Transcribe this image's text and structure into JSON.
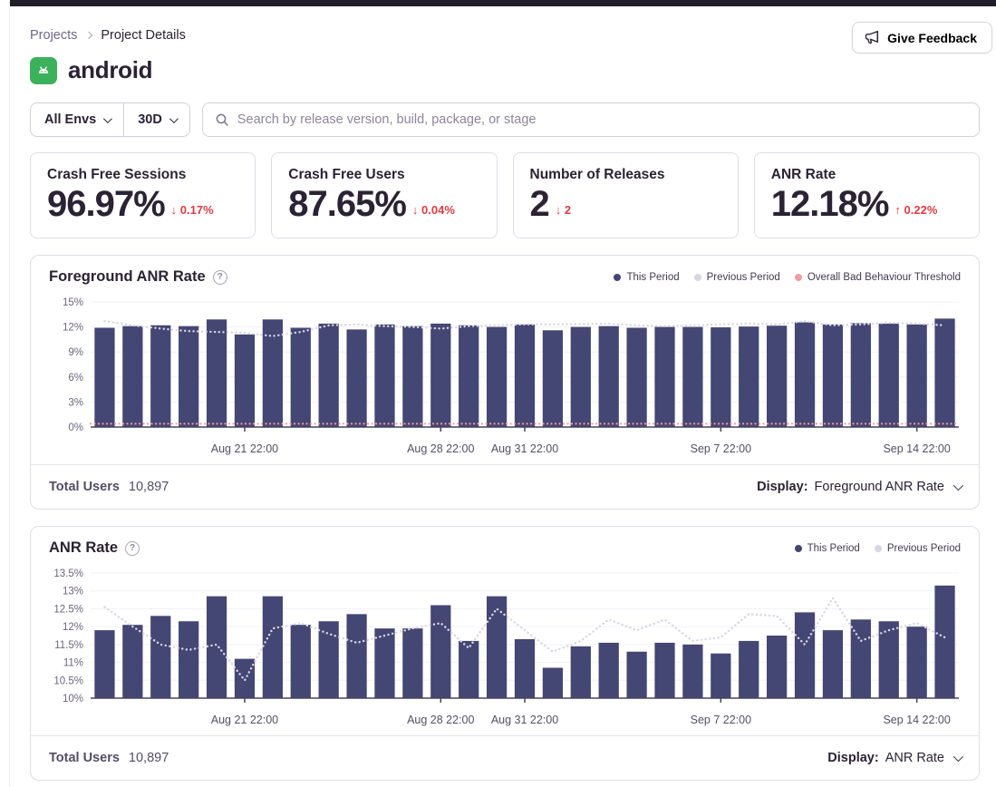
{
  "breadcrumb": {
    "items": [
      {
        "label": "Projects"
      },
      {
        "label": "Project Details"
      }
    ]
  },
  "header": {
    "project_name": "android",
    "give_feedback_label": "Give Feedback"
  },
  "filters": {
    "env_value": "All Envs",
    "period_value": "30D",
    "search_placeholder": "Search by release version, build, package, or stage",
    "search_value": ""
  },
  "stats": [
    {
      "label": "Crash Free Sessions",
      "value": "96.97%",
      "delta": "↓ 0.17%"
    },
    {
      "label": "Crash Free Users",
      "value": "87.65%",
      "delta": "↓ 0.04%"
    },
    {
      "label": "Number of Releases",
      "value": "2",
      "delta": "↓ 2"
    },
    {
      "label": "ANR Rate",
      "value": "12.18%",
      "delta": "↑ 0.22%"
    }
  ],
  "ui": {
    "help_glyph": "?"
  },
  "charts": [
    {
      "title": "Foreground ANR Rate",
      "footer_total_label": "Total Users",
      "footer_total_value": "10,897",
      "footer_display_label": "Display:",
      "footer_display_value": "Foreground ANR Rate"
    },
    {
      "title": "ANR Rate",
      "footer_total_label": "Total Users",
      "footer_total_value": "10,897",
      "footer_display_label": "Display:",
      "footer_display_value": "ANR Rate"
    }
  ],
  "chart_data": [
    {
      "type": "bar",
      "title": "Foreground ANR Rate",
      "xlabel": "",
      "ylabel": "",
      "ylim": [
        0,
        15
      ],
      "yticks": [
        0,
        3,
        6,
        9,
        12,
        15
      ],
      "ytick_labels": [
        "0%",
        "3%",
        "6%",
        "9%",
        "12%",
        "15%"
      ],
      "x_tick_labels": [
        "Aug 21 22:00",
        "Aug 28 22:00",
        "Aug 31 22:00",
        "Sep 7 22:00",
        "Sep 14 22:00"
      ],
      "x_tick_indices": [
        5,
        12,
        15,
        22,
        29
      ],
      "grid": true,
      "legend_position": "top-right",
      "legend": [
        {
          "name": "This Period",
          "color": "#444674"
        },
        {
          "name": "Previous Period",
          "color": "#d9d5e3"
        },
        {
          "name": "Overall Bad Behaviour Threshold",
          "color": "#f29ba0"
        }
      ],
      "threshold": 0.4,
      "series": [
        {
          "name": "This Period",
          "type": "bar",
          "values": [
            11.9,
            12.1,
            12.2,
            12.1,
            12.9,
            11.1,
            12.9,
            11.9,
            12.4,
            11.7,
            12.3,
            12.1,
            12.4,
            12.2,
            12.0,
            12.3,
            11.6,
            12.0,
            12.1,
            11.9,
            12.0,
            12.0,
            11.95,
            12.05,
            12.15,
            12.55,
            12.3,
            12.45,
            12.4,
            12.3,
            13.0
          ]
        },
        {
          "name": "Previous Period",
          "type": "line",
          "values": [
            12.7,
            12.2,
            11.8,
            11.5,
            11.4,
            11.3,
            10.9,
            11.4,
            12.2,
            12.3,
            12.1,
            12.0,
            11.8,
            12.1,
            12.2,
            12.3,
            12.3,
            12.35,
            12.4,
            12.2,
            12.1,
            12.2,
            12.3,
            12.4,
            12.3,
            12.7,
            12.2,
            12.3,
            12.5,
            12.4,
            12.2
          ]
        }
      ],
      "colors": {
        "bar": "#444674",
        "line": "#d9d5e3",
        "threshold": "#f29ba0"
      }
    },
    {
      "type": "bar",
      "title": "ANR Rate",
      "xlabel": "",
      "ylabel": "",
      "ylim": [
        10,
        13.5
      ],
      "yticks": [
        10,
        10.5,
        11,
        11.5,
        12,
        12.5,
        13,
        13.5
      ],
      "ytick_labels": [
        "10%",
        "10.5%",
        "11%",
        "11.5%",
        "12%",
        "12.5%",
        "13%",
        "13.5%"
      ],
      "x_tick_labels": [
        "Aug 21 22:00",
        "Aug 28 22:00",
        "Aug 31 22:00",
        "Sep 7 22:00",
        "Sep 14 22:00"
      ],
      "x_tick_indices": [
        5,
        12,
        15,
        22,
        29
      ],
      "grid": true,
      "legend_position": "top-right",
      "legend": [
        {
          "name": "This Period",
          "color": "#444674"
        },
        {
          "name": "Previous Period",
          "color": "#d9d5e3"
        }
      ],
      "series": [
        {
          "name": "This Period",
          "type": "bar",
          "values": [
            11.9,
            12.05,
            12.3,
            12.15,
            12.85,
            11.1,
            12.85,
            12.05,
            12.15,
            12.35,
            11.95,
            11.95,
            12.6,
            11.6,
            12.85,
            11.65,
            10.85,
            11.45,
            11.55,
            11.3,
            11.55,
            11.5,
            11.25,
            11.6,
            11.75,
            12.4,
            11.9,
            12.2,
            12.15,
            12.0,
            13.15
          ]
        },
        {
          "name": "Previous Period",
          "type": "line",
          "values": [
            12.55,
            12.0,
            11.5,
            11.35,
            11.5,
            10.5,
            11.95,
            12.1,
            11.8,
            11.55,
            11.75,
            11.95,
            12.1,
            11.4,
            12.5,
            11.9,
            11.3,
            11.6,
            12.2,
            11.9,
            12.2,
            11.6,
            11.7,
            12.35,
            12.3,
            11.5,
            12.8,
            11.6,
            11.9,
            12.1,
            11.7
          ]
        }
      ],
      "colors": {
        "bar": "#444674",
        "line": "#d9d5e3"
      }
    }
  ]
}
